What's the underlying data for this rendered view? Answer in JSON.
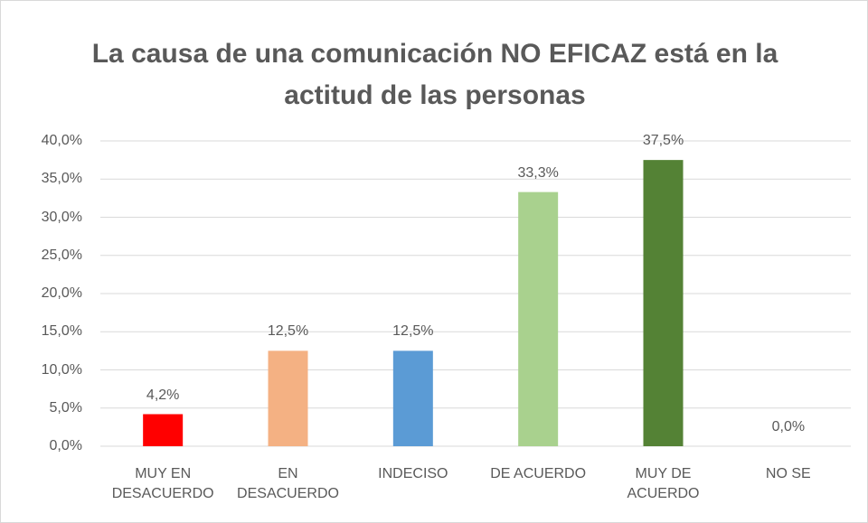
{
  "chart_data": {
    "type": "bar",
    "title": "La causa de una comunicación NO EFICAZ está en la actitud de las personas",
    "categories": [
      "MUY EN DESACUERDO",
      "EN DESACUERDO",
      "INDECISO",
      "DE ACUERDO",
      "MUY DE ACUERDO",
      "NO SE"
    ],
    "values": [
      4.2,
      12.5,
      12.5,
      33.3,
      37.5,
      0
    ],
    "value_labels": [
      "4,2%",
      "12,5%",
      "12,5%",
      "33,3%",
      "37,5%",
      "0,0%"
    ],
    "colors": [
      "#ff0000",
      "#f4b183",
      "#5b9bd5",
      "#a9d18e",
      "#548235",
      "#70ad47"
    ],
    "ylim": [
      0,
      40
    ],
    "yticks": [
      {
        "value": 0,
        "label": "0,0%"
      },
      {
        "value": 5,
        "label": "5,0%"
      },
      {
        "value": 10,
        "label": "10,0%"
      },
      {
        "value": 15,
        "label": "15,0%"
      },
      {
        "value": 20,
        "label": "20,0%"
      },
      {
        "value": 25,
        "label": "25,0%"
      },
      {
        "value": 30,
        "label": "30,0%"
      },
      {
        "value": 35,
        "label": "35,0%"
      },
      {
        "value": 40,
        "label": "40,0%"
      }
    ],
    "grid": true
  }
}
